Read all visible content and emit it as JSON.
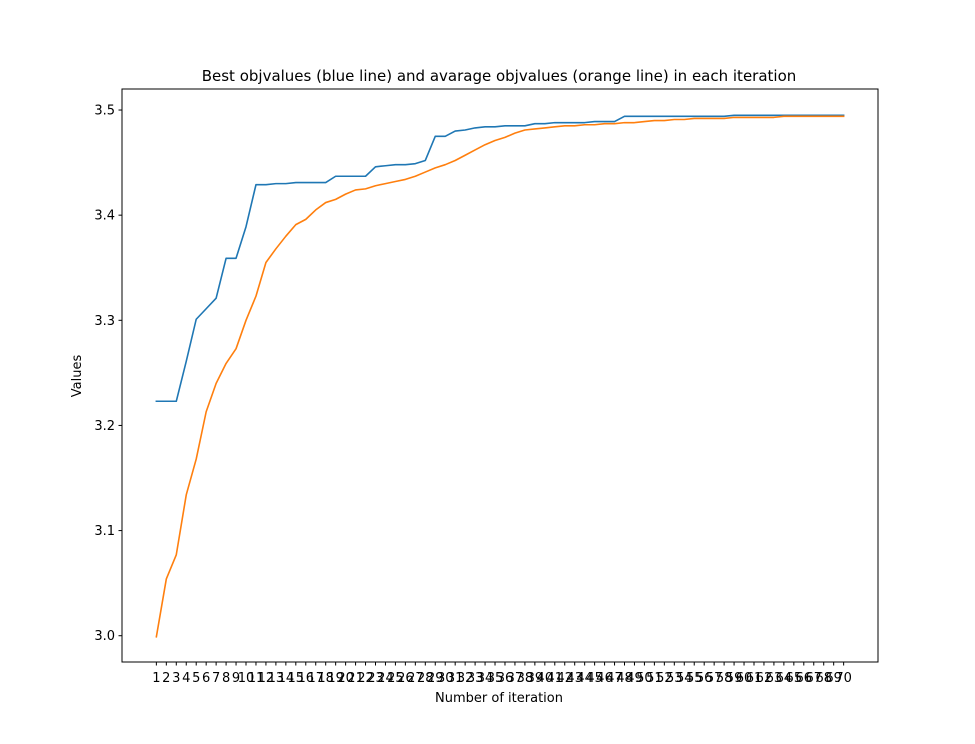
{
  "chart_data": {
    "type": "line",
    "title": "Best objvalues (blue line) and avarage objvalues (orange line) in each iteration",
    "xlabel": "Number of iteration",
    "ylabel": "Values",
    "x": [
      0,
      1,
      2,
      3,
      4,
      5,
      6,
      7,
      8,
      9,
      10,
      11,
      12,
      13,
      14,
      15,
      16,
      17,
      18,
      19,
      20,
      21,
      22,
      23,
      24,
      25,
      26,
      27,
      28,
      29,
      30,
      31,
      32,
      33,
      34,
      35,
      36,
      37,
      38,
      39,
      40,
      41,
      42,
      43,
      44,
      45,
      46,
      47,
      48,
      49,
      50,
      51,
      52,
      53,
      54,
      55,
      56,
      57,
      58,
      59,
      60,
      61,
      62,
      63,
      64,
      65,
      66,
      67,
      68,
      69
    ],
    "xticks": [
      1,
      2,
      3,
      4,
      5,
      6,
      7,
      8,
      9,
      10,
      11,
      12,
      13,
      14,
      15,
      16,
      17,
      18,
      19,
      20,
      21,
      22,
      23,
      24,
      25,
      26,
      27,
      28,
      29,
      30,
      31,
      32,
      33,
      34,
      35,
      36,
      37,
      38,
      39,
      40,
      41,
      42,
      43,
      44,
      45,
      46,
      47,
      48,
      49,
      50,
      51,
      52,
      53,
      54,
      55,
      56,
      57,
      58,
      59,
      60,
      61,
      62,
      63,
      64,
      65,
      66,
      67,
      68,
      69,
      70
    ],
    "xlim": [
      -3.45,
      72.45
    ],
    "ylim": [
      2.975,
      3.52
    ],
    "yticks": [
      3.0,
      3.1,
      3.2,
      3.3,
      3.4,
      3.5
    ],
    "ytick_labels": [
      "3.0",
      "3.1",
      "3.2",
      "3.3",
      "3.4",
      "3.5"
    ],
    "grid": false,
    "series": [
      {
        "color": "#1f77b4",
        "values": [
          3.223,
          3.223,
          3.223,
          3.261,
          3.301,
          3.311,
          3.321,
          3.359,
          3.359,
          3.389,
          3.429,
          3.429,
          3.43,
          3.43,
          3.431,
          3.431,
          3.431,
          3.431,
          3.437,
          3.437,
          3.437,
          3.437,
          3.446,
          3.447,
          3.448,
          3.448,
          3.449,
          3.452,
          3.475,
          3.475,
          3.48,
          3.481,
          3.483,
          3.484,
          3.484,
          3.485,
          3.485,
          3.485,
          3.487,
          3.487,
          3.488,
          3.488,
          3.488,
          3.488,
          3.489,
          3.489,
          3.489,
          3.494,
          3.494,
          3.494,
          3.494,
          3.494,
          3.494,
          3.494,
          3.494,
          3.494,
          3.494,
          3.494,
          3.495,
          3.495,
          3.495,
          3.495,
          3.495,
          3.495,
          3.495,
          3.495,
          3.495,
          3.495,
          3.495,
          3.495
        ]
      },
      {
        "color": "#ff7f0e",
        "values": [
          2.999,
          3.054,
          3.077,
          3.134,
          3.168,
          3.213,
          3.24,
          3.259,
          3.273,
          3.3,
          3.323,
          3.355,
          3.368,
          3.38,
          3.391,
          3.396,
          3.405,
          3.412,
          3.415,
          3.42,
          3.424,
          3.425,
          3.428,
          3.43,
          3.432,
          3.434,
          3.437,
          3.441,
          3.445,
          3.448,
          3.452,
          3.457,
          3.462,
          3.467,
          3.471,
          3.474,
          3.478,
          3.481,
          3.482,
          3.483,
          3.484,
          3.485,
          3.485,
          3.486,
          3.486,
          3.487,
          3.487,
          3.488,
          3.488,
          3.489,
          3.49,
          3.49,
          3.491,
          3.491,
          3.492,
          3.492,
          3.492,
          3.492,
          3.493,
          3.493,
          3.493,
          3.493,
          3.493,
          3.494,
          3.494,
          3.494,
          3.494,
          3.494,
          3.494,
          3.494
        ]
      }
    ]
  }
}
